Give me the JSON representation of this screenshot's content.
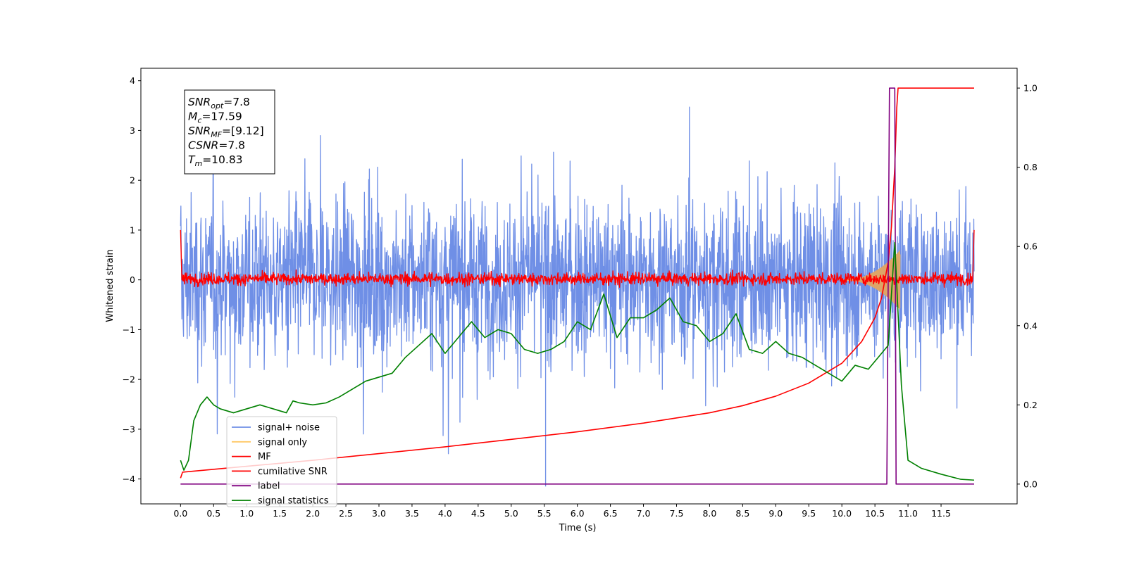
{
  "chart_data": {
    "type": "line",
    "xlabel": "Time (s)",
    "ylabel": "Whitened strain",
    "xlim": [
      -0.6,
      12.65
    ],
    "ylim_left": [
      -4.5,
      4.25
    ],
    "ylim_right": [
      -0.05,
      1.05
    ],
    "x_ticks": [
      "0.0",
      "0.5",
      "1.0",
      "1.5",
      "2.0",
      "2.5",
      "3.0",
      "3.5",
      "4.0",
      "4.5",
      "5.0",
      "5.5",
      "6.0",
      "6.5",
      "7.0",
      "7.5",
      "8.0",
      "8.5",
      "9.0",
      "9.5",
      "10.0",
      "10.5",
      "11.0",
      "11.5"
    ],
    "y_ticks_left": [
      "4",
      "3",
      "2",
      "1",
      "0",
      "−1",
      "−2",
      "−3",
      "−4"
    ],
    "y_ticks_right": [
      "1.0",
      "0.8",
      "0.6",
      "0.4",
      "0.2",
      "0.0"
    ],
    "legend_position": "lower-left",
    "annotation_box": [
      {
        "base": "SNR",
        "sub": "opt",
        "value": "=7.8"
      },
      {
        "base": "M",
        "sub": "c",
        "value": "=17.59"
      },
      {
        "base": "SNR",
        "sub": "MF",
        "value": "=[9.12]"
      },
      {
        "base": "CSNR",
        "sub": "",
        "value": "=7.8"
      },
      {
        "base": "T",
        "sub": "m",
        "value": "=10.83"
      }
    ],
    "series": [
      {
        "name": "signal+ noise",
        "color": "#6f8fe6",
        "axis": "left",
        "description_values": {
          "x_range": [
            0.0,
            12.0
          ],
          "y_range": [
            -4.15,
            3.85
          ]
        }
      },
      {
        "name": "signal only",
        "color": "#ffc966",
        "axis": "left",
        "chirp_peak_x": 10.83,
        "chirp_peak_amplitude": 0.6
      },
      {
        "name": "MF",
        "color": "#ff0000",
        "axis": "left",
        "x_range": [
          0.0,
          12.0
        ],
        "endpoint_values": [
          1.0,
          1.0
        ],
        "typical_range": [
          -0.15,
          0.25
        ]
      },
      {
        "name": "cumilative SNR",
        "color": "#ff0000",
        "axis": "right",
        "x": [
          0.0,
          0.03,
          1.0,
          2.0,
          3.0,
          4.0,
          5.0,
          6.0,
          7.0,
          8.0,
          8.5,
          9.0,
          9.5,
          10.0,
          10.3,
          10.5,
          10.6,
          10.7,
          10.75,
          10.8,
          10.83,
          10.85,
          12.0
        ],
        "y": [
          0.015,
          0.03,
          0.045,
          0.06,
          0.077,
          0.094,
          0.113,
          0.132,
          0.154,
          0.18,
          0.198,
          0.222,
          0.255,
          0.305,
          0.36,
          0.42,
          0.47,
          0.56,
          0.65,
          0.8,
          0.95,
          1.0,
          1.0
        ]
      },
      {
        "name": "label",
        "color": "#800080",
        "axis": "right",
        "x": [
          0.0,
          10.68,
          10.72,
          10.8,
          10.82,
          12.0
        ],
        "y": [
          0.0,
          0.0,
          1.0,
          1.0,
          0.0,
          0.0
        ]
      },
      {
        "name": "signal statistics",
        "color": "#008000",
        "axis": "right",
        "x": [
          0.0,
          0.05,
          0.12,
          0.2,
          0.3,
          0.4,
          0.5,
          0.6,
          0.8,
          1.0,
          1.2,
          1.4,
          1.6,
          1.7,
          1.8,
          2.0,
          2.2,
          2.4,
          2.6,
          2.8,
          3.0,
          3.2,
          3.4,
          3.6,
          3.8,
          4.0,
          4.2,
          4.4,
          4.6,
          4.8,
          5.0,
          5.2,
          5.4,
          5.6,
          5.8,
          6.0,
          6.2,
          6.4,
          6.6,
          6.8,
          7.0,
          7.2,
          7.4,
          7.6,
          7.8,
          8.0,
          8.2,
          8.4,
          8.6,
          8.8,
          9.0,
          9.2,
          9.4,
          9.6,
          9.8,
          10.0,
          10.2,
          10.4,
          10.6,
          10.7,
          10.8,
          10.9,
          11.0,
          11.2,
          11.5,
          11.8,
          12.0
        ],
        "y": [
          0.06,
          0.035,
          0.06,
          0.16,
          0.2,
          0.22,
          0.2,
          0.19,
          0.18,
          0.19,
          0.2,
          0.19,
          0.18,
          0.21,
          0.205,
          0.2,
          0.205,
          0.22,
          0.24,
          0.26,
          0.27,
          0.28,
          0.32,
          0.35,
          0.38,
          0.33,
          0.37,
          0.41,
          0.37,
          0.39,
          0.38,
          0.34,
          0.33,
          0.34,
          0.36,
          0.41,
          0.39,
          0.48,
          0.37,
          0.42,
          0.42,
          0.44,
          0.47,
          0.41,
          0.4,
          0.36,
          0.38,
          0.43,
          0.34,
          0.33,
          0.36,
          0.33,
          0.32,
          0.3,
          0.28,
          0.26,
          0.3,
          0.29,
          0.33,
          0.35,
          0.61,
          0.25,
          0.06,
          0.04,
          0.025,
          0.012,
          0.01
        ]
      }
    ]
  }
}
